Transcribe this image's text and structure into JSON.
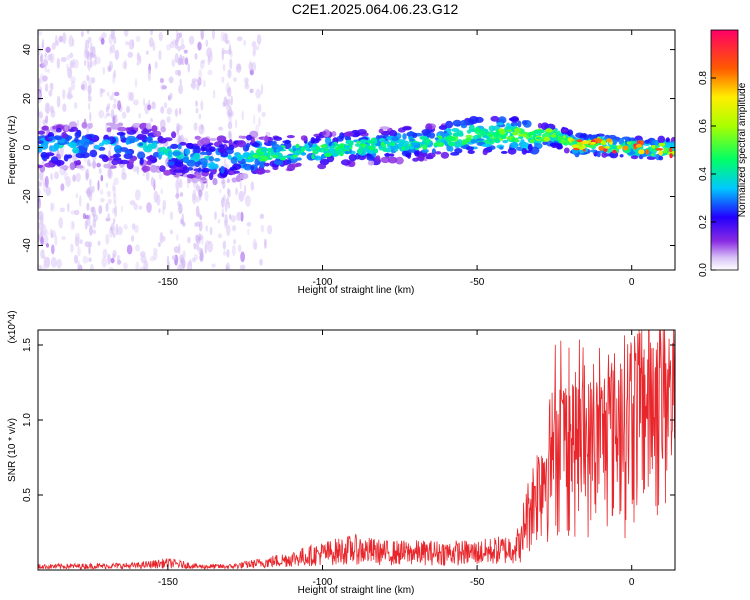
{
  "title": "C2E1.2025.064.06.23.G12",
  "chart_data": [
    {
      "type": "heatmap",
      "title": "C2E1.2025.064.06.23.G12",
      "xlabel": "Height of straight line (km)",
      "ylabel": "Frequency (Hz)",
      "xlim": [
        -192,
        14
      ],
      "ylim": [
        -50,
        48
      ],
      "xticks": [
        -150,
        -100,
        -50,
        0
      ],
      "yticks": [
        -40,
        -20,
        0,
        20,
        40
      ],
      "ridge": {
        "x": [
          -192,
          -170,
          -155,
          -148,
          -140,
          -130,
          -120,
          -100,
          -80,
          -60,
          -50,
          -40,
          -25,
          -18,
          -10,
          0,
          14
        ],
        "y": [
          0,
          1,
          0,
          -3,
          -5,
          -5,
          -3,
          -1,
          1,
          3,
          5,
          5,
          5,
          1,
          1,
          0,
          -1
        ]
      },
      "colorbar": {
        "label": "Normalized spectral amplitude",
        "range": [
          0.0,
          1.0
        ],
        "ticks": [
          0.0,
          0.2,
          0.4,
          0.6,
          0.8
        ]
      },
      "grid": false
    },
    {
      "type": "line",
      "xlabel": "Height of straight line (km)",
      "ylabel": "SNR (10 * v/v)",
      "y_multiplier": "(x10^4)",
      "xlim": [
        -192,
        14
      ],
      "ylim": [
        0,
        1.6
      ],
      "xticks": [
        -150,
        -100,
        -50,
        0
      ],
      "yticks": [
        0.5,
        1.0,
        1.5
      ],
      "series": [
        {
          "color": "#e8262b",
          "envelope_x": [
            -192,
            -160,
            -150,
            -140,
            -130,
            -120,
            -110,
            -100,
            -90,
            -80,
            -70,
            -60,
            -50,
            -40,
            -35,
            -30,
            -25,
            -20,
            -15,
            -10,
            -5,
            0,
            5,
            10,
            14
          ],
          "envelope_y": [
            0.04,
            0.05,
            0.08,
            0.04,
            0.04,
            0.08,
            0.13,
            0.19,
            0.24,
            0.2,
            0.2,
            0.2,
            0.2,
            0.24,
            0.32,
            0.6,
            0.85,
            0.9,
            0.85,
            0.9,
            1.0,
            1.1,
            1.15,
            1.2,
            1.15
          ]
        }
      ],
      "grid": false
    }
  ]
}
